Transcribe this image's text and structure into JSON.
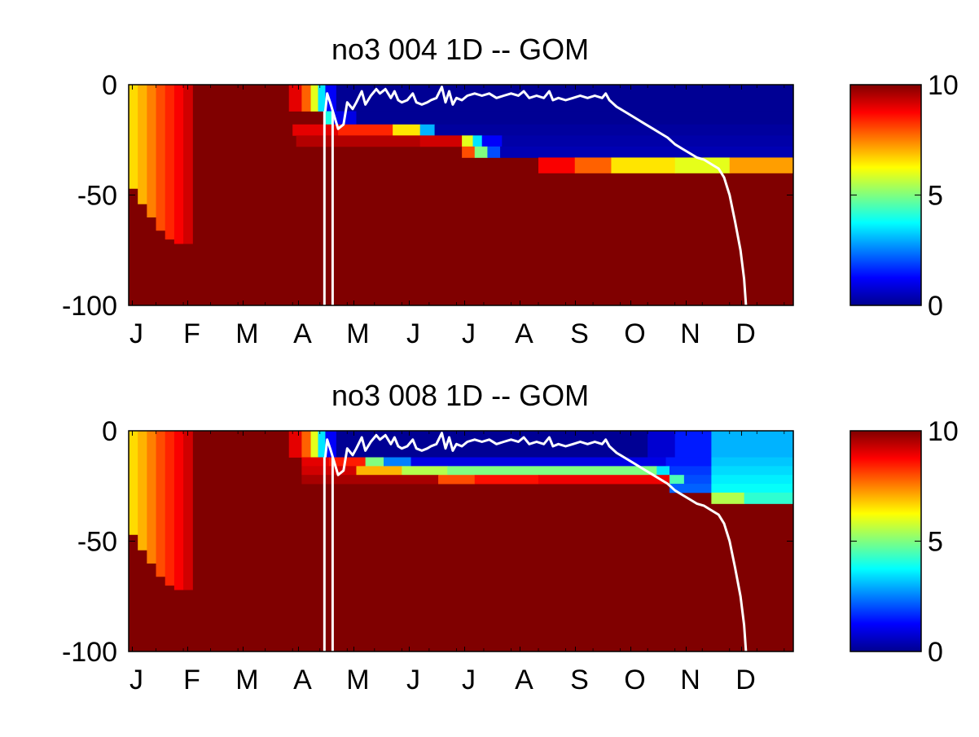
{
  "chart_data": [
    {
      "type": "heatmap",
      "title": "no3  004 1D   -- GOM",
      "x_tick_labels": [
        "J",
        "F",
        "M",
        "A",
        "M",
        "J",
        "J",
        "A",
        "S",
        "O",
        "N",
        "D"
      ],
      "y_tick_labels": [
        "0",
        "-50",
        "-100"
      ],
      "y_ticks": [
        0,
        -50,
        -100
      ],
      "ylim": [
        -100,
        0
      ],
      "xlim": [
        0,
        365
      ],
      "colorbar": {
        "colormap": "jet",
        "min": 0,
        "max": 10,
        "tick_labels": [
          "10",
          "5",
          "0"
        ],
        "ticks": [
          10,
          5,
          0
        ]
      },
      "grid": false,
      "background_value": 10,
      "segments": [
        {
          "x0": 0,
          "x1": 5,
          "y_top": 0,
          "y_bot": -47,
          "value": 6.6
        },
        {
          "x0": 5,
          "x1": 10,
          "y_top": 0,
          "y_bot": -54,
          "value": 7.0
        },
        {
          "x0": 10,
          "x1": 15,
          "y_top": 0,
          "y_bot": -60,
          "value": 7.5
        },
        {
          "x0": 15,
          "x1": 20,
          "y_top": 0,
          "y_bot": -66,
          "value": 8.0
        },
        {
          "x0": 20,
          "x1": 25,
          "y_top": 0,
          "y_bot": -70,
          "value": 8.4
        },
        {
          "x0": 25,
          "x1": 30,
          "y_top": 0,
          "y_bot": -72,
          "value": 8.8
        },
        {
          "x0": 30,
          "x1": 35,
          "y_top": 0,
          "y_bot": -72,
          "value": 9.2
        },
        {
          "x0": 88,
          "x1": 95,
          "y_top": 0,
          "y_bot": -12,
          "value": 9.0
        },
        {
          "x0": 95,
          "x1": 100,
          "y_top": 0,
          "y_bot": -12,
          "value": 7.8
        },
        {
          "x0": 100,
          "x1": 104,
          "y_top": 0,
          "y_bot": -12,
          "value": 6.0
        },
        {
          "x0": 104,
          "x1": 108,
          "y_top": 0,
          "y_bot": -12,
          "value": 3.5
        },
        {
          "x0": 108,
          "x1": 114,
          "y_top": 0,
          "y_bot": -12,
          "value": 1.2
        },
        {
          "x0": 114,
          "x1": 365,
          "y_top": 0,
          "y_bot": -12,
          "value": 0.2
        },
        {
          "x0": 108,
          "x1": 112,
          "y_top": -12,
          "y_bot": -18,
          "value": 4.0
        },
        {
          "x0": 112,
          "x1": 125,
          "y_top": -12,
          "y_bot": -18,
          "value": 1.0
        },
        {
          "x0": 125,
          "x1": 365,
          "y_top": -12,
          "y_bot": -18,
          "value": 0.2
        },
        {
          "x0": 90,
          "x1": 115,
          "y_top": -18,
          "y_bot": -23,
          "value": 9.0
        },
        {
          "x0": 115,
          "x1": 145,
          "y_top": -18,
          "y_bot": -23,
          "value": 8.4
        },
        {
          "x0": 145,
          "x1": 160,
          "y_top": -18,
          "y_bot": -23,
          "value": 6.5
        },
        {
          "x0": 160,
          "x1": 168,
          "y_top": -18,
          "y_bot": -23,
          "value": 3.0
        },
        {
          "x0": 168,
          "x1": 365,
          "y_top": -18,
          "y_bot": -23,
          "value": 0.3
        },
        {
          "x0": 92,
          "x1": 160,
          "y_top": -23,
          "y_bot": -28,
          "value": 9.5
        },
        {
          "x0": 160,
          "x1": 183,
          "y_top": -23,
          "y_bot": -28,
          "value": 9.2
        },
        {
          "x0": 183,
          "x1": 189,
          "y_top": -23,
          "y_bot": -28,
          "value": 6.0
        },
        {
          "x0": 189,
          "x1": 194,
          "y_top": -23,
          "y_bot": -28,
          "value": 3.5
        },
        {
          "x0": 194,
          "x1": 205,
          "y_top": -23,
          "y_bot": -28,
          "value": 1.2
        },
        {
          "x0": 205,
          "x1": 365,
          "y_top": -23,
          "y_bot": -28,
          "value": 0.4
        },
        {
          "x0": 183,
          "x1": 190,
          "y_top": -28,
          "y_bot": -33,
          "value": 8.0
        },
        {
          "x0": 190,
          "x1": 197,
          "y_top": -28,
          "y_bot": -33,
          "value": 5.0
        },
        {
          "x0": 197,
          "x1": 204,
          "y_top": -28,
          "y_bot": -33,
          "value": 2.0
        },
        {
          "x0": 204,
          "x1": 365,
          "y_top": -28,
          "y_bot": -33,
          "value": 0.5
        },
        {
          "x0": 225,
          "x1": 245,
          "y_top": -33,
          "y_bot": -40,
          "value": 8.8
        },
        {
          "x0": 245,
          "x1": 265,
          "y_top": -33,
          "y_bot": -40,
          "value": 7.8
        },
        {
          "x0": 265,
          "x1": 300,
          "y_top": -33,
          "y_bot": -40,
          "value": 6.5
        },
        {
          "x0": 300,
          "x1": 330,
          "y_top": -33,
          "y_bot": -40,
          "value": 6.0
        },
        {
          "x0": 330,
          "x1": 365,
          "y_top": -33,
          "y_bot": -40,
          "value": 7.2
        }
      ],
      "mld_line": [
        [
          108,
          -12
        ],
        [
          109,
          -4
        ],
        [
          111,
          -9
        ],
        [
          115,
          -20
        ],
        [
          118,
          -18
        ],
        [
          120,
          -8
        ],
        [
          123,
          -11
        ],
        [
          125,
          -8
        ],
        [
          128,
          -3
        ],
        [
          130,
          -9
        ],
        [
          133,
          -5
        ],
        [
          136,
          -2
        ],
        [
          138,
          -4
        ],
        [
          141,
          -2
        ],
        [
          144,
          -6
        ],
        [
          146,
          -3
        ],
        [
          148,
          -7
        ],
        [
          150,
          -8
        ],
        [
          153,
          -7
        ],
        [
          156,
          -4
        ],
        [
          158,
          -8
        ],
        [
          161,
          -9
        ],
        [
          164,
          -8
        ],
        [
          166,
          -7
        ],
        [
          169,
          -6
        ],
        [
          172,
          -1
        ],
        [
          174,
          -8
        ],
        [
          176,
          -3
        ],
        [
          178,
          -9
        ],
        [
          180,
          -6
        ],
        [
          183,
          -7
        ],
        [
          186,
          -5
        ],
        [
          190,
          -4
        ],
        [
          194,
          -5
        ],
        [
          198,
          -4
        ],
        [
          202,
          -6
        ],
        [
          206,
          -5
        ],
        [
          210,
          -4
        ],
        [
          214,
          -5
        ],
        [
          217,
          -3
        ],
        [
          220,
          -6
        ],
        [
          224,
          -5
        ],
        [
          228,
          -6
        ],
        [
          231,
          -3
        ],
        [
          233,
          -7
        ],
        [
          236,
          -6
        ],
        [
          240,
          -7
        ],
        [
          244,
          -6
        ],
        [
          248,
          -5
        ],
        [
          252,
          -6
        ],
        [
          256,
          -5
        ],
        [
          260,
          -6
        ],
        [
          262,
          -4
        ],
        [
          264,
          -7
        ],
        [
          268,
          -10
        ],
        [
          272,
          -12
        ],
        [
          276,
          -14
        ],
        [
          280,
          -16
        ],
        [
          284,
          -18
        ],
        [
          288,
          -20
        ],
        [
          292,
          -22
        ],
        [
          296,
          -24
        ],
        [
          300,
          -27
        ],
        [
          304,
          -29
        ],
        [
          308,
          -31
        ],
        [
          312,
          -33
        ],
        [
          316,
          -34
        ],
        [
          320,
          -36
        ],
        [
          324,
          -38
        ],
        [
          327,
          -42
        ],
        [
          330,
          -50
        ],
        [
          333,
          -62
        ],
        [
          336,
          -75
        ],
        [
          338,
          -88
        ],
        [
          339,
          -100
        ]
      ],
      "vertical_lines": [
        {
          "x": 107.5,
          "y_top": -12,
          "y_bot": -100
        },
        {
          "x": 112,
          "y_top": -12,
          "y_bot": -100
        }
      ]
    },
    {
      "type": "heatmap",
      "title": "no3  008 1D   -- GOM",
      "x_tick_labels": [
        "J",
        "F",
        "M",
        "A",
        "M",
        "J",
        "J",
        "A",
        "S",
        "O",
        "N",
        "D"
      ],
      "y_tick_labels": [
        "0",
        "-50",
        "-100"
      ],
      "y_ticks": [
        0,
        -50,
        -100
      ],
      "ylim": [
        -100,
        0
      ],
      "xlim": [
        0,
        365
      ],
      "colorbar": {
        "colormap": "jet",
        "min": 0,
        "max": 10,
        "tick_labels": [
          "10",
          "5",
          "0"
        ],
        "ticks": [
          10,
          5,
          0
        ]
      },
      "grid": false,
      "background_value": 10,
      "segments": [
        {
          "x0": 0,
          "x1": 5,
          "y_top": 0,
          "y_bot": -47,
          "value": 6.6
        },
        {
          "x0": 5,
          "x1": 10,
          "y_top": 0,
          "y_bot": -54,
          "value": 7.0
        },
        {
          "x0": 10,
          "x1": 15,
          "y_top": 0,
          "y_bot": -60,
          "value": 7.5
        },
        {
          "x0": 15,
          "x1": 20,
          "y_top": 0,
          "y_bot": -66,
          "value": 8.0
        },
        {
          "x0": 20,
          "x1": 25,
          "y_top": 0,
          "y_bot": -70,
          "value": 8.4
        },
        {
          "x0": 25,
          "x1": 30,
          "y_top": 0,
          "y_bot": -72,
          "value": 8.8
        },
        {
          "x0": 30,
          "x1": 35,
          "y_top": 0,
          "y_bot": -72,
          "value": 9.2
        },
        {
          "x0": 88,
          "x1": 95,
          "y_top": 0,
          "y_bot": -12,
          "value": 9.0
        },
        {
          "x0": 95,
          "x1": 100,
          "y_top": 0,
          "y_bot": -12,
          "value": 7.8
        },
        {
          "x0": 100,
          "x1": 104,
          "y_top": 0,
          "y_bot": -12,
          "value": 6.0
        },
        {
          "x0": 104,
          "x1": 108,
          "y_top": 0,
          "y_bot": -12,
          "value": 3.5
        },
        {
          "x0": 108,
          "x1": 114,
          "y_top": 0,
          "y_bot": -12,
          "value": 1.2
        },
        {
          "x0": 114,
          "x1": 285,
          "y_top": 0,
          "y_bot": -12,
          "value": 0.2
        },
        {
          "x0": 285,
          "x1": 300,
          "y_top": 0,
          "y_bot": -12,
          "value": 0.8
        },
        {
          "x0": 300,
          "x1": 320,
          "y_top": 0,
          "y_bot": -12,
          "value": 1.5
        },
        {
          "x0": 320,
          "x1": 365,
          "y_top": 0,
          "y_bot": -12,
          "value": 3.0
        },
        {
          "x0": 95,
          "x1": 110,
          "y_top": -12,
          "y_bot": -16,
          "value": 9.0
        },
        {
          "x0": 110,
          "x1": 130,
          "y_top": -12,
          "y_bot": -16,
          "value": 8.5
        },
        {
          "x0": 130,
          "x1": 140,
          "y_top": -12,
          "y_bot": -16,
          "value": 5.0
        },
        {
          "x0": 140,
          "x1": 155,
          "y_top": -12,
          "y_bot": -16,
          "value": 2.5
        },
        {
          "x0": 155,
          "x1": 295,
          "y_top": -12,
          "y_bot": -16,
          "value": 1.0
        },
        {
          "x0": 295,
          "x1": 320,
          "y_top": -12,
          "y_bot": -16,
          "value": 1.5
        },
        {
          "x0": 320,
          "x1": 365,
          "y_top": -12,
          "y_bot": -16,
          "value": 3.2
        },
        {
          "x0": 95,
          "x1": 125,
          "y_top": -16,
          "y_bot": -20,
          "value": 9.2
        },
        {
          "x0": 125,
          "x1": 150,
          "y_top": -16,
          "y_bot": -20,
          "value": 7.0
        },
        {
          "x0": 150,
          "x1": 175,
          "y_top": -16,
          "y_bot": -20,
          "value": 5.5
        },
        {
          "x0": 175,
          "x1": 290,
          "y_top": -16,
          "y_bot": -20,
          "value": 5.0
        },
        {
          "x0": 290,
          "x1": 297,
          "y_top": -16,
          "y_bot": -20,
          "value": 3.5
        },
        {
          "x0": 297,
          "x1": 320,
          "y_top": -16,
          "y_bot": -20,
          "value": 1.8
        },
        {
          "x0": 320,
          "x1": 365,
          "y_top": -16,
          "y_bot": -20,
          "value": 3.4
        },
        {
          "x0": 95,
          "x1": 170,
          "y_top": -20,
          "y_bot": -24,
          "value": 9.6
        },
        {
          "x0": 170,
          "x1": 190,
          "y_top": -20,
          "y_bot": -24,
          "value": 8.0
        },
        {
          "x0": 190,
          "x1": 225,
          "y_top": -20,
          "y_bot": -24,
          "value": 8.6
        },
        {
          "x0": 225,
          "x1": 297,
          "y_top": -20,
          "y_bot": -24,
          "value": 8.9
        },
        {
          "x0": 297,
          "x1": 305,
          "y_top": -20,
          "y_bot": -24,
          "value": 4.5
        },
        {
          "x0": 305,
          "x1": 320,
          "y_top": -20,
          "y_bot": -24,
          "value": 2.0
        },
        {
          "x0": 320,
          "x1": 365,
          "y_top": -20,
          "y_bot": -24,
          "value": 3.6
        },
        {
          "x0": 297,
          "x1": 320,
          "y_top": -24,
          "y_bot": -28,
          "value": 2.2
        },
        {
          "x0": 320,
          "x1": 365,
          "y_top": -24,
          "y_bot": -28,
          "value": 3.8
        },
        {
          "x0": 320,
          "x1": 338,
          "y_top": -28,
          "y_bot": -33,
          "value": 5.5
        },
        {
          "x0": 338,
          "x1": 365,
          "y_top": -28,
          "y_bot": -33,
          "value": 4.2
        }
      ],
      "mld_line": [
        [
          108,
          -12
        ],
        [
          109,
          -4
        ],
        [
          111,
          -9
        ],
        [
          115,
          -20
        ],
        [
          118,
          -18
        ],
        [
          120,
          -8
        ],
        [
          123,
          -11
        ],
        [
          125,
          -8
        ],
        [
          128,
          -3
        ],
        [
          130,
          -9
        ],
        [
          133,
          -5
        ],
        [
          136,
          -2
        ],
        [
          138,
          -4
        ],
        [
          141,
          -2
        ],
        [
          144,
          -6
        ],
        [
          146,
          -3
        ],
        [
          148,
          -7
        ],
        [
          150,
          -8
        ],
        [
          153,
          -7
        ],
        [
          156,
          -4
        ],
        [
          158,
          -8
        ],
        [
          161,
          -9
        ],
        [
          164,
          -8
        ],
        [
          166,
          -7
        ],
        [
          169,
          -6
        ],
        [
          172,
          -1
        ],
        [
          174,
          -8
        ],
        [
          176,
          -3
        ],
        [
          178,
          -9
        ],
        [
          180,
          -6
        ],
        [
          183,
          -7
        ],
        [
          186,
          -5
        ],
        [
          190,
          -4
        ],
        [
          194,
          -5
        ],
        [
          198,
          -4
        ],
        [
          202,
          -6
        ],
        [
          206,
          -5
        ],
        [
          210,
          -4
        ],
        [
          214,
          -5
        ],
        [
          217,
          -3
        ],
        [
          220,
          -6
        ],
        [
          224,
          -5
        ],
        [
          228,
          -6
        ],
        [
          231,
          -3
        ],
        [
          233,
          -7
        ],
        [
          236,
          -6
        ],
        [
          240,
          -7
        ],
        [
          244,
          -6
        ],
        [
          248,
          -5
        ],
        [
          252,
          -6
        ],
        [
          256,
          -5
        ],
        [
          260,
          -6
        ],
        [
          262,
          -4
        ],
        [
          264,
          -7
        ],
        [
          268,
          -10
        ],
        [
          272,
          -12
        ],
        [
          276,
          -14
        ],
        [
          280,
          -16
        ],
        [
          284,
          -18
        ],
        [
          288,
          -20
        ],
        [
          292,
          -22
        ],
        [
          296,
          -24
        ],
        [
          300,
          -27
        ],
        [
          304,
          -29
        ],
        [
          308,
          -31
        ],
        [
          312,
          -33
        ],
        [
          316,
          -34
        ],
        [
          320,
          -36
        ],
        [
          324,
          -38
        ],
        [
          327,
          -42
        ],
        [
          330,
          -50
        ],
        [
          333,
          -62
        ],
        [
          336,
          -75
        ],
        [
          338,
          -88
        ],
        [
          339,
          -100
        ]
      ],
      "vertical_lines": [
        {
          "x": 107.5,
          "y_top": -12,
          "y_bot": -100
        },
        {
          "x": 112,
          "y_top": -12,
          "y_bot": -100
        }
      ]
    }
  ]
}
